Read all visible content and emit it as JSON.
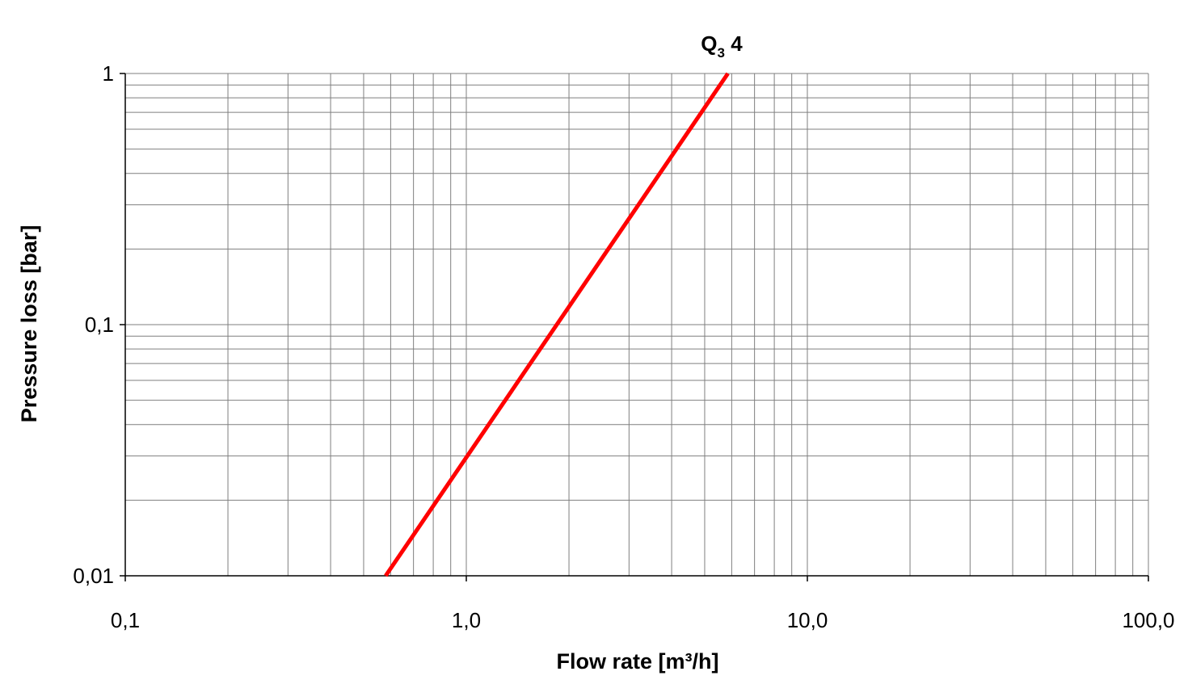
{
  "chart_data": {
    "type": "line",
    "title": {
      "main": "Q",
      "subscript": "3",
      "suffix": " 4"
    },
    "xlabel": "Flow rate [m³/h]",
    "ylabel": "Pressure loss [bar]",
    "x_scale": "log",
    "y_scale": "log",
    "xlim": [
      0.1,
      100
    ],
    "ylim": [
      0.01,
      1
    ],
    "x_ticks": [
      {
        "value": 0.1,
        "label": "0,1"
      },
      {
        "value": 1,
        "label": "1,0"
      },
      {
        "value": 10,
        "label": "10,0"
      },
      {
        "value": 100,
        "label": "100,0"
      }
    ],
    "y_ticks": [
      {
        "value": 0.01,
        "label": "0,01"
      },
      {
        "value": 0.1,
        "label": "0,1"
      },
      {
        "value": 1,
        "label": "1"
      }
    ],
    "x_grid": [
      0.2,
      0.3,
      0.4,
      0.5,
      0.6,
      0.7,
      0.8,
      0.9,
      2,
      3,
      4,
      5,
      6,
      7,
      8,
      9,
      20,
      30,
      40,
      50,
      60,
      70,
      80,
      90
    ],
    "y_grid": [
      0.02,
      0.03,
      0.04,
      0.05,
      0.06,
      0.07,
      0.08,
      0.09,
      0.2,
      0.3,
      0.4,
      0.5,
      0.6,
      0.7,
      0.8,
      0.9
    ],
    "grid": true,
    "series": [
      {
        "color": "#ff0000",
        "x": [
          0.58,
          5.85
        ],
        "y": [
          0.01,
          1
        ]
      }
    ]
  }
}
